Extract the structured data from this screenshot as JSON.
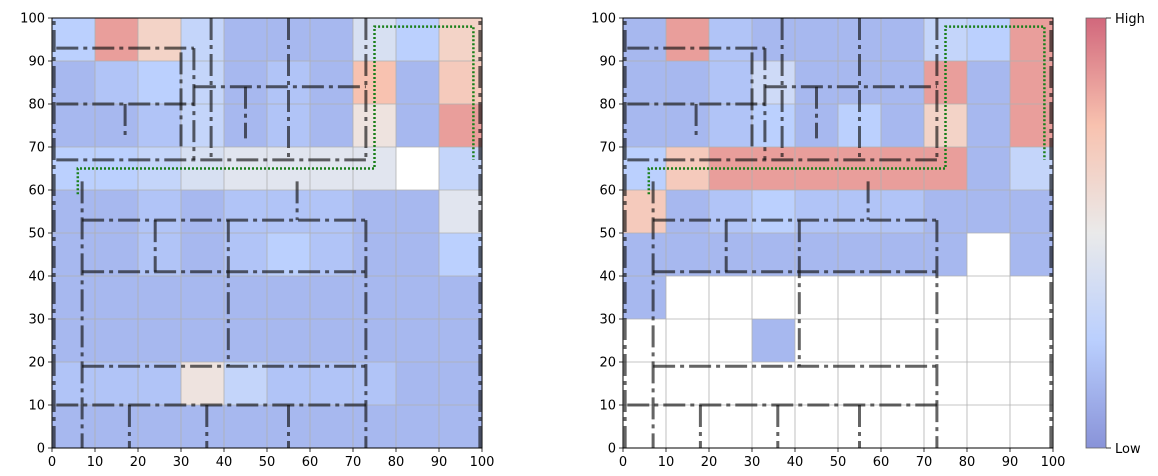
{
  "chart_data": [
    {
      "type": "heatmap",
      "title": "",
      "xlabel": "",
      "ylabel": "",
      "xlim": [
        0,
        100
      ],
      "ylim": [
        0,
        100
      ],
      "x_ticks": [
        0,
        10,
        20,
        30,
        40,
        50,
        60,
        70,
        80,
        90,
        100
      ],
      "y_ticks": [
        0,
        10,
        20,
        30,
        40,
        50,
        60,
        70,
        80,
        90,
        100
      ],
      "x_tick_labels": [
        "0",
        "10",
        "20",
        "30",
        "40",
        "50",
        "60",
        "70",
        "80",
        "90",
        "100"
      ],
      "y_tick_labels": [
        "0",
        "10",
        "20",
        "30",
        "40",
        "50",
        "60",
        "70",
        "80",
        "90",
        "100"
      ],
      "grid": true,
      "cell_size": 10,
      "x_cells": [
        0,
        10,
        20,
        30,
        40,
        50,
        60,
        70,
        80,
        90
      ],
      "y_cells": [
        95,
        85,
        75,
        65,
        55,
        45,
        35,
        25,
        15,
        5
      ],
      "values": [
        [
          0.25,
          0.85,
          0.65,
          0.3,
          0.15,
          0.15,
          0.15,
          0.4,
          0.25,
          0.65
        ],
        [
          0.15,
          0.2,
          0.25,
          0.3,
          0.15,
          0.2,
          0.15,
          0.75,
          0.15,
          0.7
        ],
        [
          0.15,
          0.15,
          0.2,
          0.3,
          0.15,
          0.2,
          0.15,
          0.55,
          0.15,
          0.85
        ],
        [
          0.25,
          0.25,
          0.3,
          0.4,
          0.45,
          0.45,
          0.45,
          0.45,
          null,
          0.3
        ],
        [
          0.15,
          0.15,
          0.2,
          0.15,
          0.2,
          0.2,
          0.2,
          0.15,
          0.15,
          0.45
        ],
        [
          0.15,
          0.15,
          0.2,
          0.15,
          0.2,
          0.25,
          0.2,
          0.15,
          0.15,
          0.25
        ],
        [
          0.15,
          0.15,
          0.15,
          0.15,
          0.15,
          0.15,
          0.15,
          0.15,
          0.15,
          0.15
        ],
        [
          0.15,
          0.15,
          0.15,
          0.15,
          0.15,
          0.15,
          0.15,
          0.15,
          0.15,
          0.15
        ],
        [
          0.2,
          0.2,
          0.2,
          0.55,
          0.3,
          0.2,
          0.2,
          0.2,
          0.15,
          0.15
        ],
        [
          0.15,
          0.15,
          0.15,
          0.15,
          0.15,
          0.15,
          0.15,
          0.15,
          0.15,
          0.15
        ]
      ],
      "walls": [
        {
          "x": [
            1,
            33
          ],
          "y": [
            93,
            93
          ]
        },
        {
          "x": [
            33,
            33
          ],
          "y": [
            93,
            67
          ]
        },
        {
          "x": [
            1,
            73
          ],
          "y": [
            67,
            67
          ]
        },
        {
          "x": [
            33,
            73
          ],
          "y": [
            84,
            84
          ]
        },
        {
          "x": [
            1,
            33
          ],
          "y": [
            80,
            80
          ]
        },
        {
          "x": [
            17,
            17
          ],
          "y": [
            80,
            72
          ]
        },
        {
          "x": [
            37,
            37
          ],
          "y": [
            100,
            67
          ]
        },
        {
          "x": [
            55,
            55
          ],
          "y": [
            100,
            67
          ]
        },
        {
          "x": [
            45,
            45
          ],
          "y": [
            84,
            72
          ]
        },
        {
          "x": [
            73,
            73
          ],
          "y": [
            100,
            67
          ]
        },
        {
          "x": [
            30,
            30
          ],
          "y": [
            92,
            70
          ]
        },
        {
          "x": [
            7,
            73
          ],
          "y": [
            53,
            53
          ]
        },
        {
          "x": [
            7,
            73
          ],
          "y": [
            41,
            41
          ]
        },
        {
          "x": [
            7,
            7
          ],
          "y": [
            62,
            0
          ]
        },
        {
          "x": [
            73,
            73
          ],
          "y": [
            53,
            0
          ]
        },
        {
          "x": [
            7,
            73
          ],
          "y": [
            19,
            19
          ]
        },
        {
          "x": [
            24,
            24
          ],
          "y": [
            53,
            41
          ]
        },
        {
          "x": [
            41,
            41
          ],
          "y": [
            53,
            19
          ]
        },
        {
          "x": [
            57,
            57
          ],
          "y": [
            62,
            53
          ]
        },
        {
          "x": [
            1,
            73
          ],
          "y": [
            10,
            10
          ]
        },
        {
          "x": [
            18,
            18
          ],
          "y": [
            10,
            0
          ]
        },
        {
          "x": [
            36,
            36
          ],
          "y": [
            10,
            0
          ]
        },
        {
          "x": [
            55,
            55
          ],
          "y": [
            10,
            0
          ]
        },
        {
          "x": [
            0.5,
            0.5
          ],
          "y": [
            0,
            100
          ]
        },
        {
          "x": [
            99.5,
            99.5
          ],
          "y": [
            0,
            100
          ]
        }
      ],
      "path": {
        "x": [
          6,
          6,
          75,
          75,
          98,
          98
        ],
        "y": [
          59,
          65,
          65,
          98,
          98,
          67
        ]
      },
      "path_color": "#1a7f1a"
    },
    {
      "type": "heatmap",
      "title": "",
      "xlabel": "",
      "ylabel": "",
      "xlim": [
        0,
        100
      ],
      "ylim": [
        0,
        100
      ],
      "x_ticks": [
        0,
        10,
        20,
        30,
        40,
        50,
        60,
        70,
        80,
        90,
        100
      ],
      "y_ticks": [
        0,
        10,
        20,
        30,
        40,
        50,
        60,
        70,
        80,
        90,
        100
      ],
      "x_tick_labels": [
        "0",
        "10",
        "20",
        "30",
        "40",
        "50",
        "60",
        "70",
        "80",
        "90",
        "100"
      ],
      "y_tick_labels": [
        "0",
        "10",
        "20",
        "30",
        "40",
        "50",
        "60",
        "70",
        "80",
        "90",
        "100"
      ],
      "grid": true,
      "cell_size": 10,
      "x_cells": [
        0,
        10,
        20,
        30,
        40,
        50,
        60,
        70,
        80,
        90
      ],
      "y_cells": [
        95,
        85,
        75,
        65,
        55,
        45,
        35,
        25,
        15,
        5
      ],
      "values": [
        [
          0.15,
          0.85,
          0.2,
          0.15,
          0.15,
          0.15,
          0.15,
          0.3,
          0.25,
          0.85
        ],
        [
          0.15,
          0.15,
          0.2,
          0.35,
          0.15,
          0.15,
          0.15,
          0.85,
          0.15,
          0.85
        ],
        [
          0.15,
          0.15,
          0.2,
          0.25,
          0.15,
          0.25,
          0.15,
          0.65,
          0.15,
          0.85
        ],
        [
          0.25,
          0.7,
          0.85,
          0.85,
          0.85,
          0.85,
          0.85,
          0.85,
          0.15,
          0.3
        ],
        [
          0.7,
          0.15,
          0.2,
          0.25,
          0.2,
          0.2,
          0.2,
          0.15,
          0.15,
          0.15
        ],
        [
          0.15,
          0.15,
          0.15,
          0.15,
          0.15,
          0.15,
          0.15,
          0.15,
          null,
          0.15
        ],
        [
          0.15,
          null,
          null,
          null,
          null,
          null,
          null,
          null,
          null,
          null
        ],
        [
          null,
          null,
          null,
          0.15,
          null,
          null,
          null,
          null,
          null,
          null
        ],
        [
          null,
          null,
          null,
          null,
          null,
          null,
          null,
          null,
          null,
          null
        ],
        [
          null,
          null,
          null,
          null,
          null,
          null,
          null,
          null,
          null,
          null
        ]
      ],
      "walls": [
        {
          "x": [
            1,
            33
          ],
          "y": [
            93,
            93
          ]
        },
        {
          "x": [
            33,
            33
          ],
          "y": [
            93,
            67
          ]
        },
        {
          "x": [
            1,
            73
          ],
          "y": [
            67,
            67
          ]
        },
        {
          "x": [
            33,
            73
          ],
          "y": [
            84,
            84
          ]
        },
        {
          "x": [
            1,
            33
          ],
          "y": [
            80,
            80
          ]
        },
        {
          "x": [
            17,
            17
          ],
          "y": [
            80,
            72
          ]
        },
        {
          "x": [
            37,
            37
          ],
          "y": [
            100,
            67
          ]
        },
        {
          "x": [
            55,
            55
          ],
          "y": [
            100,
            67
          ]
        },
        {
          "x": [
            45,
            45
          ],
          "y": [
            84,
            72
          ]
        },
        {
          "x": [
            73,
            73
          ],
          "y": [
            100,
            67
          ]
        },
        {
          "x": [
            30,
            30
          ],
          "y": [
            92,
            70
          ]
        },
        {
          "x": [
            7,
            73
          ],
          "y": [
            53,
            53
          ]
        },
        {
          "x": [
            7,
            73
          ],
          "y": [
            41,
            41
          ]
        },
        {
          "x": [
            7,
            7
          ],
          "y": [
            62,
            0
          ]
        },
        {
          "x": [
            73,
            73
          ],
          "y": [
            53,
            0
          ]
        },
        {
          "x": [
            7,
            73
          ],
          "y": [
            19,
            19
          ]
        },
        {
          "x": [
            24,
            24
          ],
          "y": [
            53,
            41
          ]
        },
        {
          "x": [
            41,
            41
          ],
          "y": [
            53,
            19
          ]
        },
        {
          "x": [
            57,
            57
          ],
          "y": [
            62,
            53
          ]
        },
        {
          "x": [
            1,
            73
          ],
          "y": [
            10,
            10
          ]
        },
        {
          "x": [
            18,
            18
          ],
          "y": [
            10,
            0
          ]
        },
        {
          "x": [
            36,
            36
          ],
          "y": [
            10,
            0
          ]
        },
        {
          "x": [
            55,
            55
          ],
          "y": [
            10,
            0
          ]
        },
        {
          "x": [
            0.5,
            0.5
          ],
          "y": [
            0,
            100
          ]
        },
        {
          "x": [
            99.5,
            99.5
          ],
          "y": [
            0,
            100
          ]
        }
      ],
      "path": {
        "x": [
          6,
          6,
          75,
          75,
          98,
          98
        ],
        "y": [
          59,
          65,
          65,
          98,
          98,
          67
        ]
      },
      "path_color": "#1a7f1a"
    }
  ],
  "colorbar": {
    "high_label": "High",
    "low_label": "Low",
    "colormap": "coolwarm",
    "colors": [
      "#3b4cc0",
      "#8db0fe",
      "#dddddd",
      "#f49a7b",
      "#b40426"
    ]
  }
}
